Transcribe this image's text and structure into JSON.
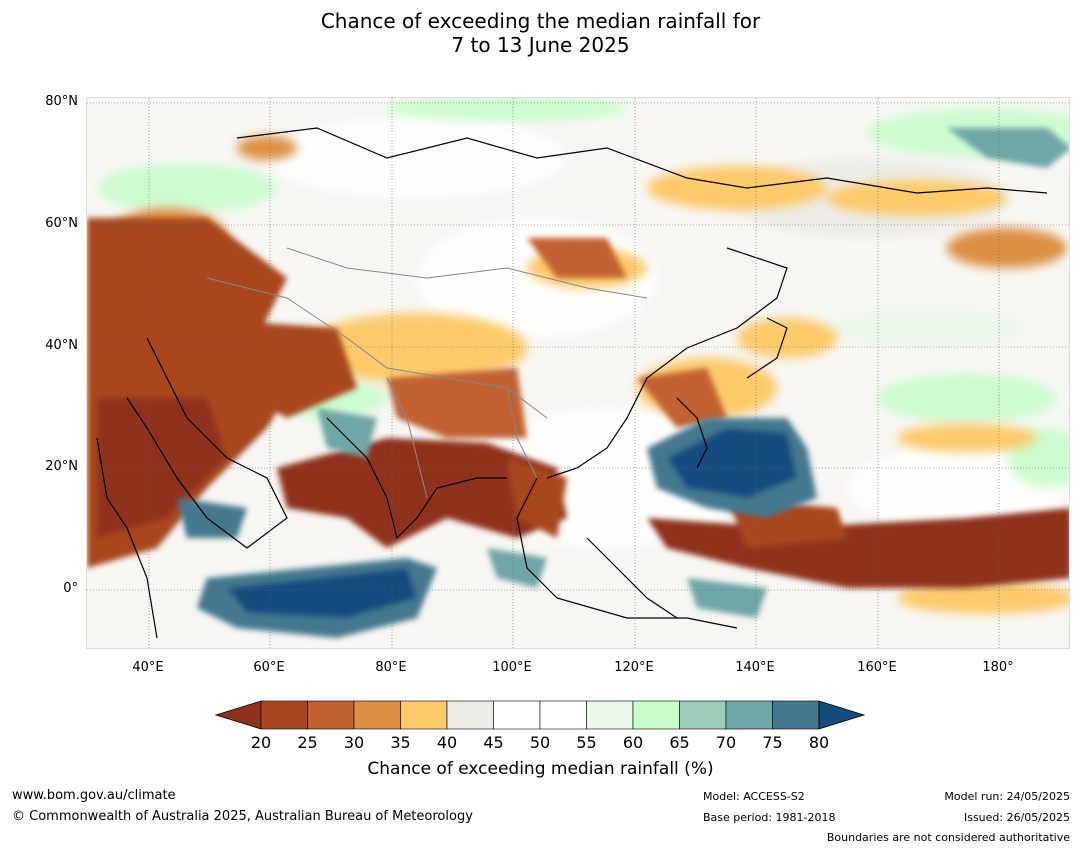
{
  "title_line1": "Chance of exceeding the median rainfall for",
  "title_line2": "7 to 13 June 2025",
  "lat_labels": [
    "80°N",
    "60°N",
    "40°N",
    "20°N",
    "0°"
  ],
  "lon_labels": [
    "40°E",
    "60°E",
    "80°E",
    "100°E",
    "120°E",
    "140°E",
    "160°E",
    "180°"
  ],
  "colorbar": {
    "ticks": [
      "20",
      "25",
      "30",
      "35",
      "40",
      "45",
      "50",
      "55",
      "60",
      "65",
      "70",
      "75",
      "80"
    ],
    "colors": [
      "#8f321c",
      "#a9461f",
      "#c26230",
      "#dd9045",
      "#fdca6a",
      "#edebe6",
      "#ffffff",
      "#ffffff",
      "#ebf6eb",
      "#c9fdcc",
      "#9dcdb9",
      "#6fa6a6",
      "#44788f",
      "#154c80"
    ],
    "title": "Chance of exceeding median rainfall (%)"
  },
  "footer": {
    "website": "www.bom.gov.au/climate",
    "copyright": "© Commonwealth of Australia 2025, Australian Bureau of Meteorology",
    "model": "Model: ACCESS-S2",
    "base_period": "Base period: 1981-2018",
    "model_run": "Model run: 24/05/2025",
    "issued": "Issued: 26/05/2025",
    "disclaimer": "Boundaries are not considered authoritative"
  }
}
